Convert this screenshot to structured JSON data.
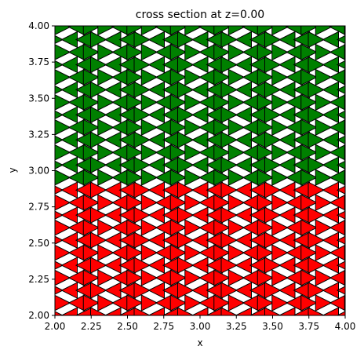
{
  "chart_data": {
    "type": "scatter",
    "title": "cross section at z=0.00",
    "xlabel": "x",
    "ylabel": "y",
    "xlim": [
      2.0,
      4.0
    ],
    "ylim": [
      2.0,
      4.0
    ],
    "xticks": [
      "2.00",
      "2.25",
      "2.50",
      "2.75",
      "3.00",
      "3.25",
      "3.50",
      "3.75",
      "4.00"
    ],
    "yticks": [
      "2.00",
      "2.25",
      "2.50",
      "2.75",
      "3.00",
      "3.25",
      "3.50",
      "3.75",
      "4.00"
    ],
    "grid": false,
    "marker": "triangle",
    "colors": {
      "lower": "#ff0000",
      "upper": "#008000",
      "edge": "#000000"
    },
    "lattice": {
      "x_spacing": 0.1,
      "x_offset_odd_rows": 0.05,
      "y_spacing": 0.0866,
      "y_start": 2.0,
      "orientation_sequence": [
        "right",
        "left",
        "left",
        "right",
        "right",
        "left"
      ],
      "color_boundary_y": 2.9
    }
  }
}
